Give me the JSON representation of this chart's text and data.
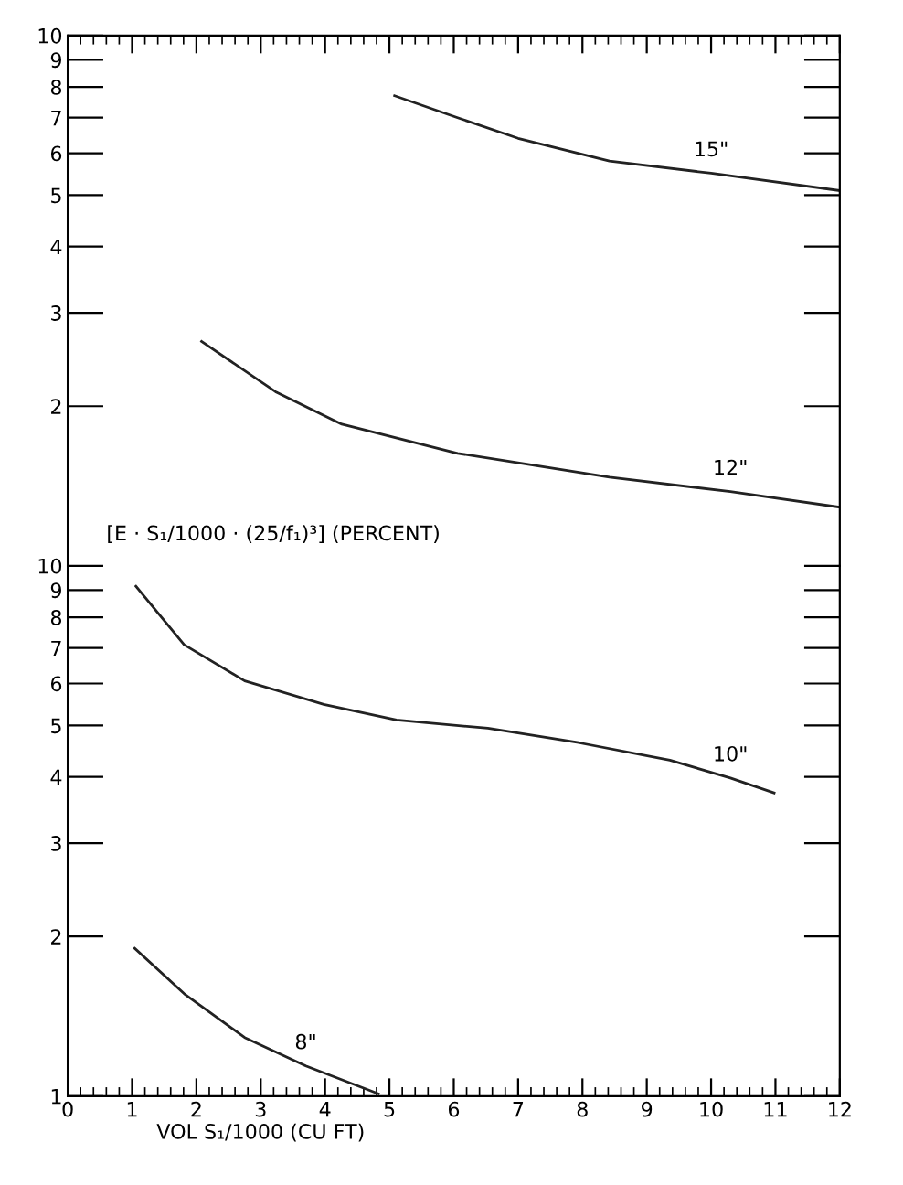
{
  "chart_data": [
    {
      "type": "line",
      "ylabel": "[E · S₁/1000 · (25/f₁)³] (PERCENT)",
      "log": "y",
      "grid": false,
      "legend": false,
      "marker": "none",
      "line_style": "solid",
      "tick_labels": "y",
      "xlim": [
        0,
        12
      ],
      "ylim": [
        1,
        10
      ],
      "xticks": [
        0,
        {
          "value": 0.2,
          "label": null
        },
        {
          "value": 0.4,
          "label": null
        },
        {
          "value": 0.6,
          "label": null
        },
        {
          "value": 0.8,
          "label": null
        },
        1,
        {
          "value": 1.2,
          "label": null
        },
        {
          "value": 1.4,
          "label": null
        },
        {
          "value": 1.6,
          "label": null
        },
        {
          "value": 1.8,
          "label": null
        },
        2,
        {
          "value": 2.2,
          "label": null
        },
        {
          "value": 2.4,
          "label": null
        },
        {
          "value": 2.6,
          "label": null
        },
        {
          "value": 2.8,
          "label": null
        },
        3,
        {
          "value": 3.2,
          "label": null
        },
        {
          "value": 3.4,
          "label": null
        },
        {
          "value": 3.6,
          "label": null
        },
        {
          "value": 3.8,
          "label": null
        },
        4,
        {
          "value": 4.2,
          "label": null
        },
        {
          "value": 4.4,
          "label": null
        },
        {
          "value": 4.6,
          "label": null
        },
        {
          "value": 4.8,
          "label": null
        },
        5,
        {
          "value": 5.2,
          "label": null
        },
        {
          "value": 5.4,
          "label": null
        },
        {
          "value": 5.6,
          "label": null
        },
        {
          "value": 5.8,
          "label": null
        },
        6,
        {
          "value": 6.2,
          "label": null
        },
        {
          "value": 6.4,
          "label": null
        },
        {
          "value": 6.6,
          "label": null
        },
        {
          "value": 6.8,
          "label": null
        },
        7,
        {
          "value": 7.2,
          "label": null
        },
        {
          "value": 7.4,
          "label": null
        },
        {
          "value": 7.6,
          "label": null
        },
        {
          "value": 7.8,
          "label": null
        },
        8,
        {
          "value": 8.2,
          "label": null
        },
        {
          "value": 8.4,
          "label": null
        },
        {
          "value": 8.6,
          "label": null
        },
        {
          "value": 8.8,
          "label": null
        },
        9,
        {
          "value": 9.2,
          "label": null
        },
        {
          "value": 9.4,
          "label": null
        },
        {
          "value": 9.6,
          "label": null
        },
        {
          "value": 9.8,
          "label": null
        },
        10,
        {
          "value": 10.2,
          "label": null
        },
        {
          "value": 10.4,
          "label": null
        },
        {
          "value": 10.6,
          "label": null
        },
        {
          "value": 10.8,
          "label": null
        },
        11,
        {
          "value": 11.2,
          "label": null
        },
        {
          "value": 11.4,
          "label": null
        },
        {
          "value": 11.6,
          "label": null
        },
        {
          "value": 11.8,
          "label": null
        },
        12
      ],
      "yticks": [
        2,
        3,
        4,
        5,
        6,
        7,
        8,
        9,
        10
      ],
      "series": [
        {
          "name": "15\"",
          "color": "#222222",
          "x": [
            5.08,
            6.06,
            7.0,
            8.42,
            10.0,
            12.0
          ],
          "values": [
            7.7,
            7.0,
            6.4,
            5.8,
            5.5,
            5.1
          ]
        },
        {
          "name": "12\"",
          "color": "#222222",
          "x": [
            2.08,
            3.23,
            4.26,
            6.06,
            8.42,
            10.3,
            12.0
          ],
          "values": [
            2.65,
            2.13,
            1.85,
            1.63,
            1.47,
            1.38,
            1.29
          ]
        }
      ]
    },
    {
      "type": "line",
      "xlabel": "VOL S₁/1000 (CU FT)",
      "log": "y",
      "grid": false,
      "legend": false,
      "marker": "none",
      "line_style": "solid",
      "xlim": [
        0,
        12
      ],
      "ylim": [
        1,
        10
      ],
      "xticks": [
        0,
        {
          "value": 0.2,
          "label": null
        },
        {
          "value": 0.4,
          "label": null
        },
        {
          "value": 0.6,
          "label": null
        },
        {
          "value": 0.8,
          "label": null
        },
        1,
        {
          "value": 1.2,
          "label": null
        },
        {
          "value": 1.4,
          "label": null
        },
        {
          "value": 1.6,
          "label": null
        },
        {
          "value": 1.8,
          "label": null
        },
        2,
        {
          "value": 2.2,
          "label": null
        },
        {
          "value": 2.4,
          "label": null
        },
        {
          "value": 2.6,
          "label": null
        },
        {
          "value": 2.8,
          "label": null
        },
        3,
        {
          "value": 3.2,
          "label": null
        },
        {
          "value": 3.4,
          "label": null
        },
        {
          "value": 3.6,
          "label": null
        },
        {
          "value": 3.8,
          "label": null
        },
        4,
        {
          "value": 4.2,
          "label": null
        },
        {
          "value": 4.4,
          "label": null
        },
        {
          "value": 4.6,
          "label": null
        },
        {
          "value": 4.8,
          "label": null
        },
        5,
        {
          "value": 5.2,
          "label": null
        },
        {
          "value": 5.4,
          "label": null
        },
        {
          "value": 5.6,
          "label": null
        },
        {
          "value": 5.8,
          "label": null
        },
        6,
        {
          "value": 6.2,
          "label": null
        },
        {
          "value": 6.4,
          "label": null
        },
        {
          "value": 6.6,
          "label": null
        },
        {
          "value": 6.8,
          "label": null
        },
        7,
        {
          "value": 7.2,
          "label": null
        },
        {
          "value": 7.4,
          "label": null
        },
        {
          "value": 7.6,
          "label": null
        },
        {
          "value": 7.8,
          "label": null
        },
        8,
        {
          "value": 8.2,
          "label": null
        },
        {
          "value": 8.4,
          "label": null
        },
        {
          "value": 8.6,
          "label": null
        },
        {
          "value": 8.8,
          "label": null
        },
        9,
        {
          "value": 9.2,
          "label": null
        },
        {
          "value": 9.4,
          "label": null
        },
        {
          "value": 9.6,
          "label": null
        },
        {
          "value": 9.8,
          "label": null
        },
        10,
        {
          "value": 10.2,
          "label": null
        },
        {
          "value": 10.4,
          "label": null
        },
        {
          "value": 10.6,
          "label": null
        },
        {
          "value": 10.8,
          "label": null
        },
        11,
        {
          "value": 11.2,
          "label": null
        },
        {
          "value": 11.4,
          "label": null
        },
        {
          "value": 11.6,
          "label": null
        },
        {
          "value": 11.8,
          "label": null
        },
        12
      ],
      "yticks": [
        1,
        2,
        3,
        4,
        5,
        6,
        7,
        8,
        9,
        10
      ],
      "series": [
        {
          "name": "10\"",
          "color": "#222222",
          "x": [
            1.06,
            1.81,
            2.75,
            3.98,
            5.11,
            6.53,
            7.94,
            9.36,
            10.3,
            10.98
          ],
          "values": [
            9.15,
            7.1,
            6.07,
            5.48,
            5.12,
            4.94,
            4.64,
            4.3,
            3.98,
            3.73
          ]
        },
        {
          "name": "8\"",
          "color": "#222222",
          "x": [
            1.04,
            1.81,
            2.75,
            3.7,
            4.83
          ],
          "values": [
            1.9,
            1.56,
            1.29,
            1.14,
            1.01
          ]
        }
      ]
    }
  ]
}
